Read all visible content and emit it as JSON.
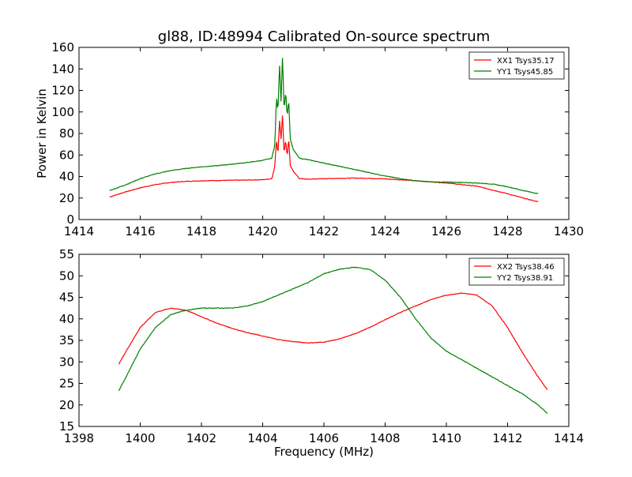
{
  "figure": {
    "title": "gl88, ID:48994 Calibrated On-source spectrum"
  },
  "chart_data": [
    {
      "type": "line",
      "title": "gl88, ID:48994 Calibrated On-source spectrum",
      "xlabel": "",
      "ylabel": "Power in Kelvin",
      "xlim": [
        1414,
        1430
      ],
      "ylim": [
        0,
        160
      ],
      "xticks": [
        "1414",
        "1416",
        "1418",
        "1420",
        "1422",
        "1424",
        "1426",
        "1428",
        "1430"
      ],
      "yticks": [
        "0",
        "20",
        "40",
        "60",
        "80",
        "100",
        "120",
        "140",
        "160"
      ],
      "grid": false,
      "legend_position": "top-right",
      "series": [
        {
          "name": "XX1 Tsys35.17",
          "color": "#ff0000",
          "x": [
            1415.0,
            1415.5,
            1416.0,
            1416.5,
            1417.0,
            1417.5,
            1418.0,
            1418.5,
            1419.0,
            1419.5,
            1420.0,
            1420.3,
            1420.4,
            1420.45,
            1420.5,
            1420.55,
            1420.6,
            1420.65,
            1420.7,
            1420.75,
            1420.8,
            1420.85,
            1420.9,
            1421.0,
            1421.2,
            1421.5,
            1422.0,
            1422.5,
            1423.0,
            1423.5,
            1424.0,
            1424.5,
            1425.0,
            1425.5,
            1426.0,
            1426.5,
            1427.0,
            1427.5,
            1428.0,
            1428.5,
            1429.0
          ],
          "values": [
            21,
            25.5,
            29.5,
            32.5,
            34.5,
            35.5,
            36,
            36.3,
            36.5,
            36.7,
            37,
            38,
            50,
            75,
            60,
            93,
            75,
            98,
            60,
            75,
            58,
            76,
            50,
            45,
            38,
            37.5,
            38,
            38.3,
            38.5,
            38.3,
            37.8,
            37,
            36,
            35,
            34,
            32.5,
            31,
            27.5,
            24,
            20,
            16.5
          ]
        },
        {
          "name": "YY1 Tsys45.85",
          "color": "#008000",
          "x": [
            1415.0,
            1415.5,
            1416.0,
            1416.5,
            1417.0,
            1417.5,
            1418.0,
            1418.5,
            1419.0,
            1419.5,
            1420.0,
            1420.3,
            1420.4,
            1420.45,
            1420.5,
            1420.55,
            1420.6,
            1420.65,
            1420.7,
            1420.75,
            1420.8,
            1420.85,
            1420.9,
            1421.0,
            1421.2,
            1421.5,
            1422.0,
            1422.5,
            1423.0,
            1423.5,
            1424.0,
            1424.5,
            1425.0,
            1425.5,
            1426.0,
            1426.5,
            1427.0,
            1427.5,
            1428.0,
            1428.5,
            1429.0
          ],
          "values": [
            27,
            32,
            38,
            42.5,
            45.5,
            47.5,
            49,
            50,
            51.5,
            53,
            55,
            57,
            70,
            115,
            100,
            145,
            110,
            153,
            100,
            120,
            95,
            112,
            75,
            65,
            57,
            55.5,
            52.5,
            49.5,
            46.5,
            43.5,
            40.5,
            38,
            36,
            35,
            34.8,
            34.5,
            34,
            33,
            30.5,
            27,
            24
          ]
        }
      ]
    },
    {
      "type": "line",
      "title": "",
      "xlabel": "Frequency (MHz)",
      "ylabel": "",
      "xlim": [
        1398,
        1414
      ],
      "ylim": [
        15,
        55
      ],
      "xticks": [
        "1398",
        "1400",
        "1402",
        "1404",
        "1406",
        "1408",
        "1410",
        "1412",
        "1414"
      ],
      "yticks": [
        "15",
        "20",
        "25",
        "30",
        "35",
        "40",
        "45",
        "50",
        "55"
      ],
      "grid": false,
      "legend_position": "top-right",
      "series": [
        {
          "name": "XX2 Tsys38.46",
          "color": "#ff0000",
          "x": [
            1399.3,
            1399.5,
            1400.0,
            1400.5,
            1401.0,
            1401.5,
            1402.0,
            1402.5,
            1403.0,
            1403.5,
            1404.0,
            1404.5,
            1405.0,
            1405.5,
            1406.0,
            1406.5,
            1407.0,
            1407.5,
            1408.0,
            1408.5,
            1409.0,
            1409.5,
            1410.0,
            1410.5,
            1411.0,
            1411.5,
            1412.0,
            1412.5,
            1413.0,
            1413.3
          ],
          "values": [
            29.5,
            32,
            38,
            41.5,
            42.5,
            42,
            40.5,
            39,
            37.8,
            36.8,
            36,
            35.2,
            34.7,
            34.4,
            34.6,
            35.3,
            36.5,
            38,
            39.8,
            41.5,
            43,
            44.5,
            45.5,
            46,
            45.5,
            43,
            38,
            32,
            26.5,
            23.5
          ]
        },
        {
          "name": "YY2 Tsys38.91",
          "color": "#008000",
          "x": [
            1399.3,
            1399.5,
            1400.0,
            1400.5,
            1401.0,
            1401.5,
            1402.0,
            1402.5,
            1403.0,
            1403.5,
            1404.0,
            1404.5,
            1405.0,
            1405.5,
            1406.0,
            1406.5,
            1407.0,
            1407.5,
            1408.0,
            1408.5,
            1409.0,
            1409.5,
            1410.0,
            1410.5,
            1411.0,
            1411.5,
            1412.0,
            1412.5,
            1413.0,
            1413.3
          ],
          "values": [
            23.3,
            26,
            33,
            38,
            41,
            42,
            42.5,
            42.5,
            42.5,
            43,
            44,
            45.5,
            47,
            48.5,
            50.5,
            51.5,
            52,
            51.5,
            49,
            45,
            40,
            35.5,
            32.5,
            30.5,
            28.5,
            26.5,
            24.5,
            22.5,
            20,
            18
          ]
        }
      ]
    }
  ]
}
